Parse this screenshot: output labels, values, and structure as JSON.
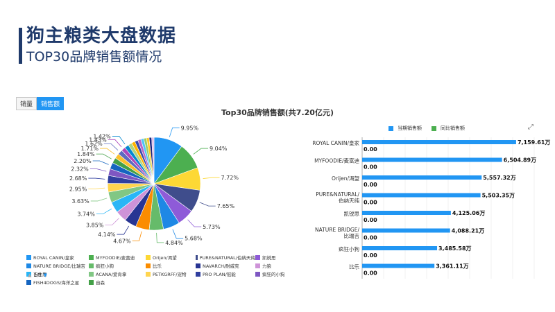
{
  "header": {
    "title": "狗主粮类大盘数据",
    "subtitle": "TOP30品牌销售额情况"
  },
  "tabs": [
    {
      "label": "销量",
      "active": false
    },
    {
      "label": "销售额",
      "active": true
    }
  ],
  "chart_data": [
    {
      "type": "pie",
      "title": "Top30品牌销售额(共7.20亿元)",
      "slices": [
        {
          "name": "ROYAL CANIN/皇家",
          "percent": 9.95,
          "color": "#2196f3"
        },
        {
          "name": "MYFOODIE/麦富迪",
          "percent": 9.04,
          "color": "#4caf50"
        },
        {
          "name": "Orijen/渴望",
          "percent": 7.72,
          "color": "#fdd835"
        },
        {
          "name": "PURE&NATURAL/伯纳天纯",
          "percent": 7.65,
          "color": "#3f4d8c"
        },
        {
          "name": "凯锐思",
          "percent": 5.73,
          "color": "#8e5bd8"
        },
        {
          "name": "NATURE BRIDGE/比瑞吉",
          "percent": 5.68,
          "color": "#1e88e5"
        },
        {
          "name": "疯狂小狗",
          "percent": 4.84,
          "color": "#66bb6a"
        },
        {
          "name": "比乐",
          "percent": 4.67,
          "color": "#fb8c00"
        },
        {
          "name": "NAVARCH/耐威克",
          "percent": 4.14,
          "color": "#283593"
        },
        {
          "name": "力狼",
          "percent": 3.85,
          "color": "#ce93d8"
        },
        {
          "name": "吉他思",
          "percent": 3.74,
          "color": "#29b6f6"
        },
        {
          "name": "ACANA/爱肯拿",
          "percent": 3.63,
          "color": "#81c784"
        },
        {
          "name": "PETKGRFF/宠物",
          "percent": 2.95,
          "color": "#ffd54f"
        },
        {
          "name": "PRO PLAN/冠能",
          "percent": 2.68,
          "color": "#303f9f"
        },
        {
          "name": "疯狂的小狗",
          "percent": 2.32,
          "color": "#7e57c2"
        },
        {
          "name": "FISH4DOGS/海洋之星",
          "percent": 2.2,
          "color": "#1565c0"
        },
        {
          "name": "自森",
          "percent": 1.84,
          "color": "#43a047"
        },
        {
          "name": "",
          "percent": 1.71,
          "color": "#fbc02d"
        },
        {
          "name": "",
          "percent": 1.62,
          "color": "#5c6bc0"
        },
        {
          "name": "",
          "percent": 1.43,
          "color": "#ab47bc"
        },
        {
          "name": "",
          "percent": 1.42,
          "color": "#0288d1"
        },
        {
          "name": "",
          "percent": 1.3,
          "color": "#aed581"
        },
        {
          "name": "",
          "percent": 1.2,
          "color": "#ffb300"
        },
        {
          "name": "",
          "percent": 1.1,
          "color": "#3949ab"
        },
        {
          "name": "",
          "percent": 1.05,
          "color": "#ba68c8"
        },
        {
          "name": "",
          "percent": 1.0,
          "color": "#4fc3f7"
        },
        {
          "name": "",
          "percent": 0.95,
          "color": "#9ccc65"
        },
        {
          "name": "",
          "percent": 0.9,
          "color": "#ffca28"
        },
        {
          "name": "",
          "percent": 0.85,
          "color": "#1a237e"
        },
        {
          "name": "",
          "percent": 0.8,
          "color": "#e1bee7"
        }
      ],
      "labeled_percents": [
        "9.95%",
        "9.04%",
        "7.72%",
        "7.65%",
        "5.73%",
        "5.68%",
        "4.84%",
        "4.67%",
        "4.14%",
        "3.85%",
        "3.74%",
        "3.63%",
        "2.95%",
        "2.68%",
        "2.32%",
        "2.20%",
        "1.84%",
        "1.71%",
        "1.62%",
        "1.43%",
        "1.42%"
      ]
    },
    {
      "type": "bar",
      "orientation": "horizontal",
      "legend": [
        "当期销售额",
        "同比销售额"
      ],
      "legend_colors": [
        "#2196f3",
        "#4caf50"
      ],
      "categories": [
        "ROYAL CANIN/皇家",
        "MYFOODIE/麦富迪",
        "Orijen/渴望",
        "PURE&NATURAL/伯纳天纯",
        "凯锐思",
        "NATURE BRIDGE/比瑞吉",
        "疯狂小狗",
        "比乐"
      ],
      "series": [
        {
          "name": "当期销售额",
          "values": [
            7159.61,
            6504.89,
            5557.32,
            5503.35,
            4125.06,
            4088.21,
            3485.58,
            3361.11
          ],
          "labels": [
            "7,159.61万",
            "6,504.89万",
            "5,557.32万",
            "5,503.35万",
            "4,125.06万",
            "4,088.21万",
            "3,485.58万",
            "3,361.11万"
          ]
        },
        {
          "name": "同比销售额",
          "values": [
            0,
            0,
            0,
            0,
            0,
            0,
            0,
            0
          ],
          "labels": [
            "0.00",
            "0.00",
            "0.00",
            "0.00",
            "0.00",
            "0.00",
            "0.00",
            "0.00"
          ]
        }
      ],
      "xlim": [
        0,
        8000
      ]
    }
  ],
  "pie_legend": {
    "items": [
      {
        "label": "ROYAL CANIN/皇家",
        "color": "#2196f3"
      },
      {
        "label": "MYFOODIE/麦富迪",
        "color": "#4caf50"
      },
      {
        "label": "Orijen/渴望",
        "color": "#fdd835"
      },
      {
        "label": "PURE&NATURAL/伯纳天纯",
        "color": "#3f4d8c"
      },
      {
        "label": "凯锐思",
        "color": "#8e5bd8"
      },
      {
        "label": "NATURE BRIDGE/比瑞吉",
        "color": "#1e88e5"
      },
      {
        "label": "疯狂小狗",
        "color": "#66bb6a"
      },
      {
        "label": "比乐",
        "color": "#fb8c00"
      },
      {
        "label": "NAVARCH/耐威克",
        "color": "#283593"
      },
      {
        "label": "力狼",
        "color": "#ce93d8"
      },
      {
        "label": "吉他思",
        "color": "#29b6f6"
      },
      {
        "label": "ACANA/爱肯拿",
        "color": "#81c784"
      },
      {
        "label": "PETKGRFF/宠物",
        "color": "#ffd54f"
      },
      {
        "label": "PRO PLAN/冠能",
        "color": "#303f9f"
      },
      {
        "label": "疯狂的小狗",
        "color": "#7e57c2"
      },
      {
        "label": "FISH4DOGS/海洋之星",
        "color": "#1565c0"
      },
      {
        "label": "自森",
        "color": "#43a047"
      }
    ],
    "pager_text": "1/3",
    "prev_icon": "triangle-up-icon",
    "next_icon": "triangle-down-icon"
  },
  "toolbar": {
    "expand_icon": "expand-icon"
  }
}
